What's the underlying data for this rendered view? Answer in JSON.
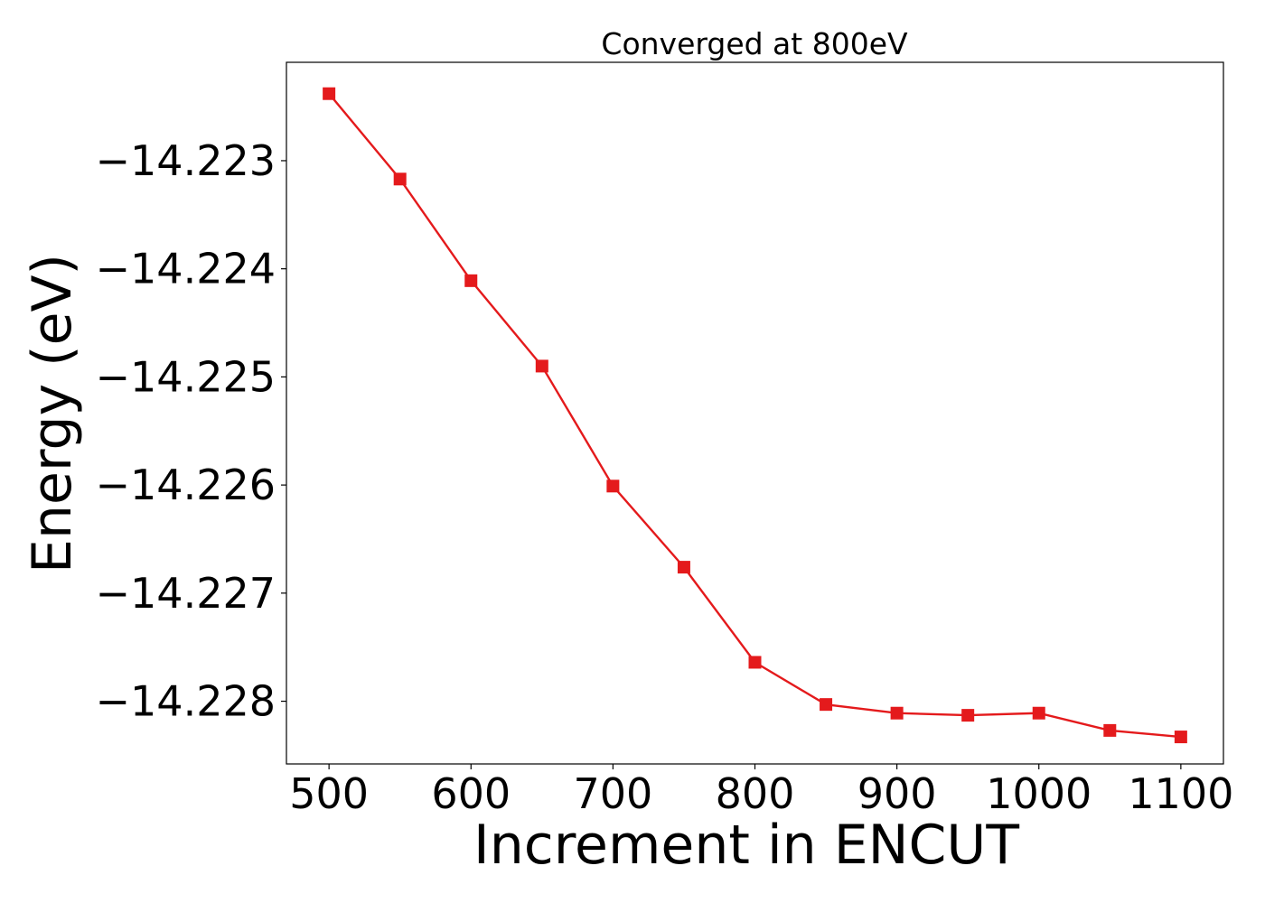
{
  "chart_data": {
    "type": "line",
    "title": "Converged at 800eV",
    "xlabel": "Increment in ENCUT",
    "ylabel": "Energy (eV)",
    "xlim": [
      470,
      1130
    ],
    "ylim": [
      -14.22858,
      -14.22209
    ],
    "x_ticks": [
      500,
      600,
      700,
      800,
      900,
      1000,
      1100
    ],
    "x_tick_labels": [
      "500",
      "600",
      "700",
      "800",
      "900",
      "1000",
      "1100"
    ],
    "y_ticks": [
      -14.223,
      -14.224,
      -14.225,
      -14.226,
      -14.227,
      -14.228
    ],
    "y_tick_labels": [
      "−14.223",
      "−14.224",
      "−14.225",
      "−14.226",
      "−14.227",
      "−14.228"
    ],
    "grid": false,
    "series": [
      {
        "color": "#e41a1c",
        "marker": "square",
        "x": [
          500,
          550,
          600,
          650,
          700,
          750,
          800,
          850,
          900,
          950,
          1000,
          1050,
          1100
        ],
        "y": [
          -14.22238,
          -14.22317,
          -14.22411,
          -14.2249,
          -14.22601,
          -14.22676,
          -14.22764,
          -14.22803,
          -14.22811,
          -14.22813,
          -14.22811,
          -14.22827,
          -14.22833
        ]
      }
    ]
  }
}
